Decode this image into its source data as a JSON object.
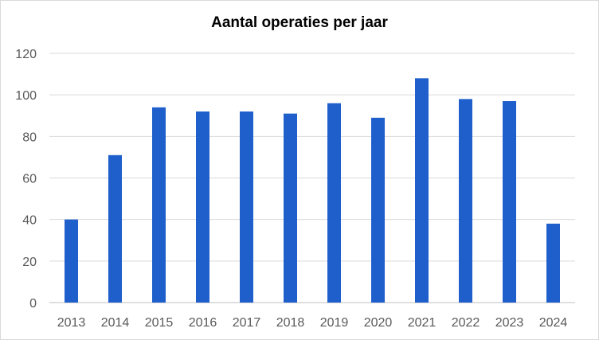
{
  "chart_data": {
    "type": "bar",
    "title": "Aantal operaties per jaar",
    "xlabel": "",
    "ylabel": "",
    "categories": [
      "2013",
      "2014",
      "2015",
      "2016",
      "2017",
      "2018",
      "2019",
      "2020",
      "2021",
      "2022",
      "2023",
      "2024"
    ],
    "values": [
      40,
      71,
      94,
      92,
      92,
      91,
      96,
      89,
      108,
      98,
      97,
      38
    ],
    "ylim": [
      0,
      120
    ],
    "yticks": [
      0,
      20,
      40,
      60,
      80,
      100,
      120
    ],
    "grid": true,
    "legend": "none",
    "colors": {
      "bar": "#1f5fcc",
      "grid": "#d9d9d9",
      "axis": "#bfbfbf",
      "tick_text": "#595959"
    }
  }
}
